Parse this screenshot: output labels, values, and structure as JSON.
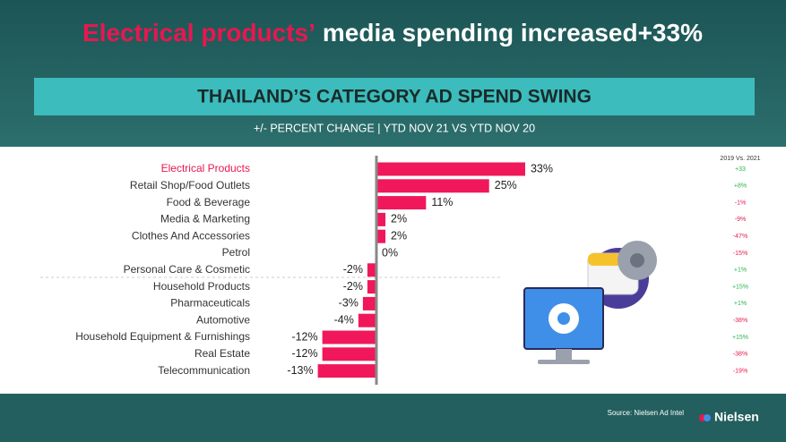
{
  "headline": {
    "highlight": "Electrical products’",
    "rest": "media spending increased+33%"
  },
  "chart_data": {
    "type": "bar",
    "orientation": "horizontal",
    "title": "THAILAND’S CATEGORY AD SPEND SWING",
    "subtitle": "+/- PERCENT CHANGE | YTD NOV 21 VS YTD NOV 20",
    "categories": [
      "Electrical Products",
      "Retail Shop/Food Outlets",
      "Food & Beverage",
      "Media & Marketing",
      "Clothes And Accessories",
      "Petrol",
      "Personal Care & Cosmetic",
      "Household Products",
      "Pharmaceuticals",
      "Automotive",
      "Household Equipment & Furnishings",
      "Real Estate",
      "Telecommunication"
    ],
    "values": [
      33,
      25,
      11,
      2,
      2,
      0,
      -2,
      -2,
      -3,
      -4,
      -12,
      -12,
      -13
    ],
    "value_labels": [
      "33%",
      "25%",
      "11%",
      "2%",
      "2%",
      "0%",
      "-2%",
      "-2%",
      "-3%",
      "-4%",
      "-12%",
      "-12%",
      "-13%"
    ],
    "color": "#f0185a",
    "highlight_color": "#e8174f",
    "comparison": {
      "title": "2019 Vs. 2021",
      "labels": [
        "+33",
        "+8%",
        "-1%",
        "-9%",
        "-47%",
        "-15%",
        "+1%",
        "+15%",
        "+1%",
        "-38%",
        "+15%",
        "-38%",
        "-19%"
      ],
      "positive_color": "#2db34a",
      "negative_color": "#e8174f"
    }
  },
  "footer": {
    "source": "Source: Nielsen Ad Intel",
    "brand": "Nielsen"
  }
}
